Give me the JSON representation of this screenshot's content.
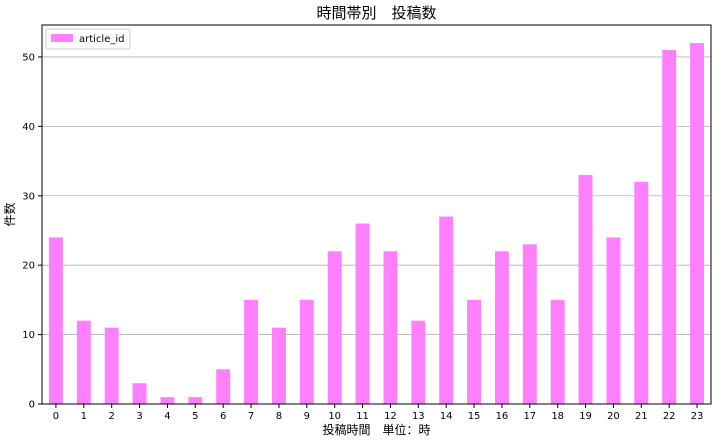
{
  "chart_data": {
    "type": "bar",
    "title": "時間帯別　投稿数",
    "xlabel": "投稿時間　単位：時",
    "ylabel": "件数",
    "categories": [
      "0",
      "1",
      "2",
      "3",
      "4",
      "5",
      "6",
      "7",
      "8",
      "9",
      "10",
      "11",
      "12",
      "13",
      "14",
      "15",
      "16",
      "17",
      "18",
      "19",
      "20",
      "21",
      "22",
      "23"
    ],
    "series": [
      {
        "name": "article_id",
        "values": [
          24,
          12,
          11,
          3,
          1,
          1,
          5,
          15,
          11,
          15,
          22,
          26,
          22,
          12,
          27,
          15,
          22,
          23,
          15,
          33,
          24,
          32,
          51,
          52
        ]
      }
    ],
    "ylim": [
      0,
      54.6
    ],
    "yticks": [
      0,
      10,
      20,
      30,
      40,
      50
    ],
    "grid": "y",
    "legend_position": "top-left",
    "bar_color": "#ff80ff"
  }
}
